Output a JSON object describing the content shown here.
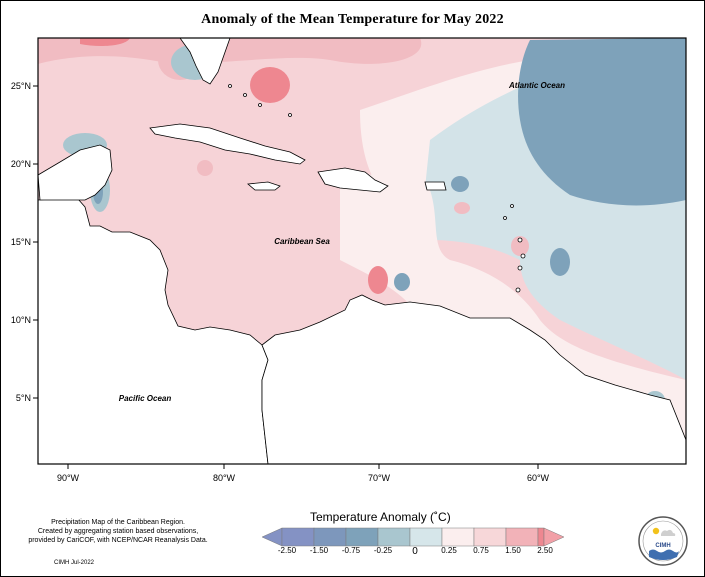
{
  "title": "Anomaly of the Mean Temperature for May 2022",
  "labels": {
    "atlantic": "Atlantic Ocean",
    "caribbean": "Caribbean Sea",
    "pacific": "Pacific Ocean"
  },
  "axes": {
    "x_ticks": [
      "90°W",
      "80°W",
      "70°W",
      "60°W"
    ],
    "y_ticks": [
      "25°N",
      "20°N",
      "15°N",
      "10°N",
      "5°N"
    ]
  },
  "legend": {
    "title": "Temperature Anomaly (˚C)",
    "tick_labels": [
      "-2.50",
      "-1.50",
      "-0.75",
      "-0.25",
      "0",
      "0.25",
      "0.75",
      "1.50",
      "2.50"
    ],
    "colors": [
      "#8492c4",
      "#7d97bc",
      "#7ea2ba",
      "#a9c6cf",
      "#d6e6ea",
      "#fbeeee",
      "#f7d7d9",
      "#f2b2b8",
      "#ee8790",
      "#f2a0a7"
    ]
  },
  "footer": {
    "note_lines": [
      "Precipitation Map of the Caribbean Region.",
      "Created by aggregating station based observations,",
      "provided by CariCOF, with NCEP/NCAR Reanalysis Data."
    ],
    "credit": "CIMH Jul-2022"
  },
  "logo": {
    "text": "CIMH"
  }
}
